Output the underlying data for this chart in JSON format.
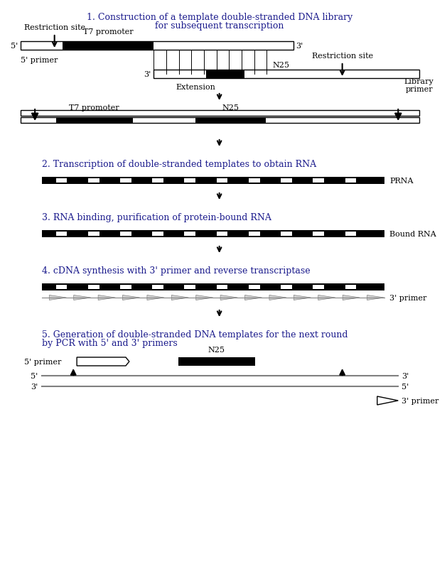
{
  "title1": "1. Construction of a template double-stranded DNA library",
  "title1b": "for subsequent transcription",
  "title2": "2. Transcription of double-stranded templates to obtain RNA",
  "title3": "3. RNA binding, purification of protein-bound RNA",
  "title4": "4. cDNA synthesis with 3' primer and reverse transcriptase",
  "title5": "5. Generation of double-stranded DNA templates for the next round",
  "title5b": "by PCR with 5' and 3' primers",
  "bg_color": "#ffffff",
  "text_color": "#000000",
  "label_color": "#1a1a8c"
}
